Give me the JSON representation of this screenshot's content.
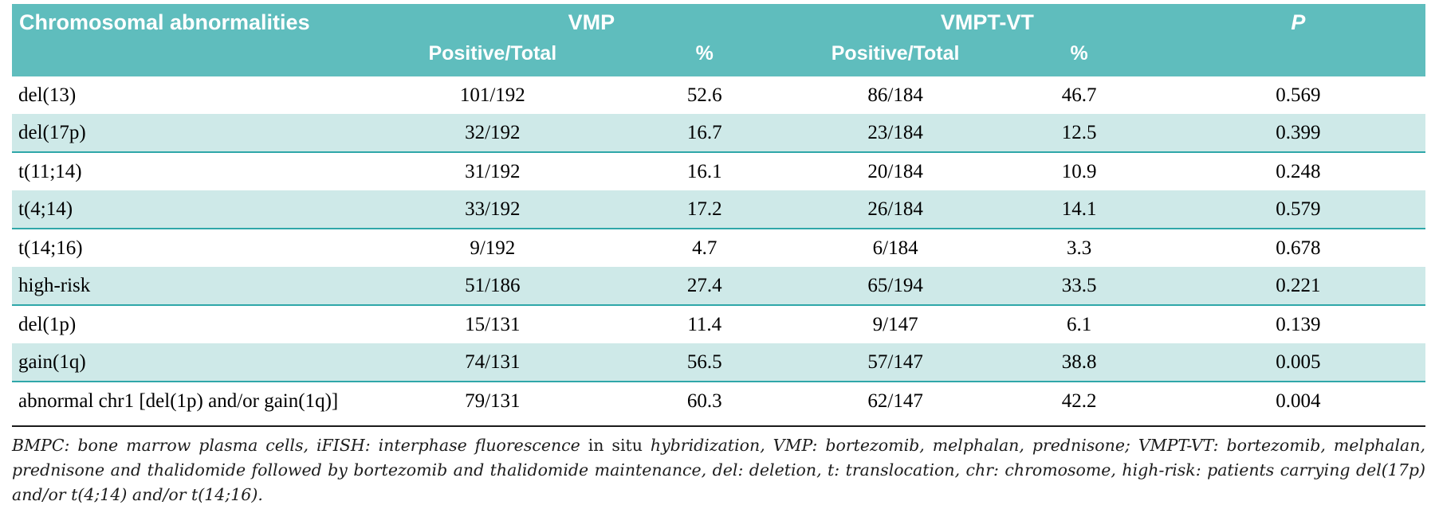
{
  "colors": {
    "header_bg": "#5FBDBD",
    "row_alt_bg": "#CEE9E8",
    "row_alt_border": "#2FA7A9",
    "rule_color": "#1a1a1a"
  },
  "table": {
    "header": {
      "col_label": "Chromosomal abnormalities",
      "group_vmp": "VMP",
      "group_vmpt": "VMPT-VT",
      "col_p": "P",
      "sub_vmp_pos": "Positive/Total",
      "sub_vmp_pct": "%",
      "sub_vmpt_pos": "Positive/Total",
      "sub_vmpt_pct": "%"
    },
    "rows": [
      {
        "label": "del(13)",
        "vmp_pos": "101/192",
        "vmp_pct": "52.6",
        "vmpt_pos": "86/184",
        "vmpt_pct": "46.7",
        "p": "0.569"
      },
      {
        "label": "del(17p)",
        "vmp_pos": "32/192",
        "vmp_pct": "16.7",
        "vmpt_pos": "23/184",
        "vmpt_pct": "12.5",
        "p": "0.399"
      },
      {
        "label": "t(11;14)",
        "vmp_pos": "31/192",
        "vmp_pct": "16.1",
        "vmpt_pos": "20/184",
        "vmpt_pct": "10.9",
        "p": "0.248"
      },
      {
        "label": "t(4;14)",
        "vmp_pos": "33/192",
        "vmp_pct": "17.2",
        "vmpt_pos": "26/184",
        "vmpt_pct": "14.1",
        "p": "0.579"
      },
      {
        "label": "t(14;16)",
        "vmp_pos": "9/192",
        "vmp_pct": "4.7",
        "vmpt_pos": "6/184",
        "vmpt_pct": "3.3",
        "p": "0.678"
      },
      {
        "label": "high-risk",
        "vmp_pos": "51/186",
        "vmp_pct": "27.4",
        "vmpt_pos": "65/194",
        "vmpt_pct": "33.5",
        "p": "0.221"
      },
      {
        "label": "del(1p)",
        "vmp_pos": "15/131",
        "vmp_pct": "11.4",
        "vmpt_pos": "9/147",
        "vmpt_pct": "6.1",
        "p": "0.139"
      },
      {
        "label": "gain(1q)",
        "vmp_pos": "74/131",
        "vmp_pct": "56.5",
        "vmpt_pos": "57/147",
        "vmpt_pct": "38.8",
        "p": "0.005"
      },
      {
        "label": "abnormal chr1 [del(1p) and/or gain(1q)]",
        "vmp_pos": "79/131",
        "vmp_pct": "60.3",
        "vmpt_pos": "62/147",
        "vmpt_pct": "42.2",
        "p": "0.004"
      }
    ]
  },
  "footnote": {
    "italic_before": "BMPC: bone marrow plasma cells, iFISH: interphase fluorescence",
    "upright": " in situ ",
    "italic_after": "hybridization, VMP: bortezomib, melphalan, prednisone; VMPT-VT: bortezomib, melphalan, prednisone and thalidomide followed by bortezomib and thalidomide maintenance, del: deletion, t: translocation, chr: chromosome, high-risk: patients carrying del(17p) and/or t(4;14) and/or t(14;16)."
  }
}
